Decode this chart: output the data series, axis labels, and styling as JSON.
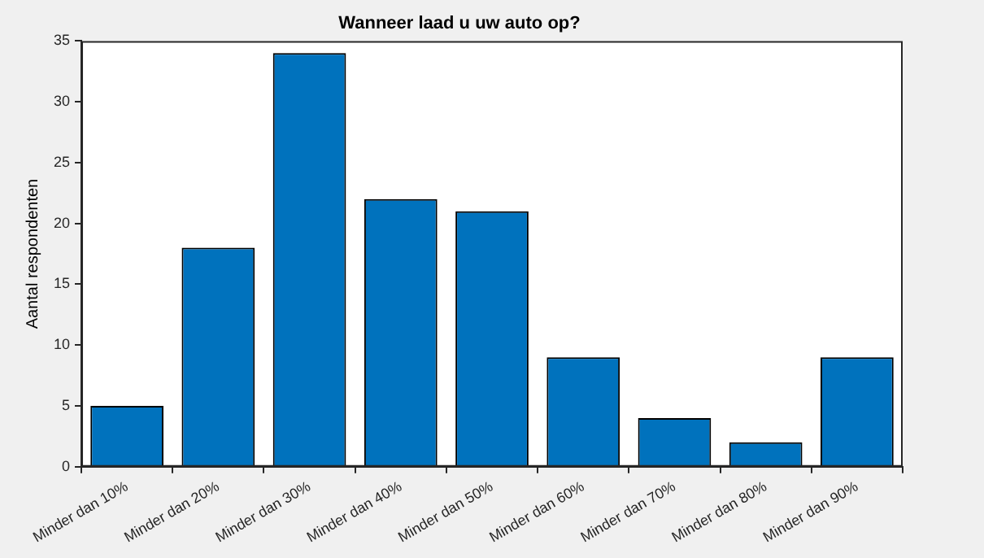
{
  "chart_data": {
    "type": "bar",
    "title": "Wanneer laad u uw auto op?",
    "ylabel": "Aantal respondenten",
    "categories": [
      "Minder dan 10%",
      "Minder dan 20%",
      "Minder dan 30%",
      "Minder dan 40%",
      "Minder dan 50%",
      "Minder dan 60%",
      "Minder dan 70%",
      "Minder dan 80%",
      "Minder dan 90%"
    ],
    "values": [
      5,
      18,
      34,
      22,
      21,
      9,
      4,
      2,
      9
    ],
    "color": "#0072bd",
    "ylim": [
      0,
      35
    ],
    "yticks": [
      0,
      5,
      10,
      15,
      20,
      25,
      30,
      35
    ],
    "grid": false,
    "legend": false
  }
}
